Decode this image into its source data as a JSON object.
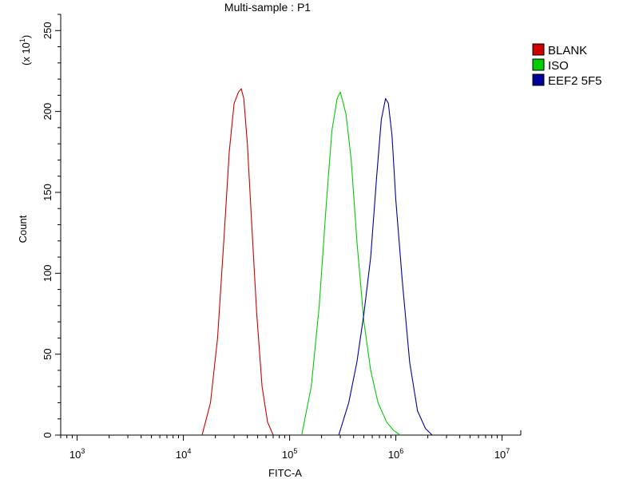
{
  "chart_data": {
    "type": "line",
    "title": "Multi-sample : P1",
    "xlabel": "FITC-A",
    "ylabel": "Count",
    "y_multiplier_label": "(x 10",
    "y_multiplier_exp": "1",
    "y_multiplier_close": ")",
    "xscale": "log",
    "xlim": [
      700,
      15000000
    ],
    "ylim": [
      0,
      260
    ],
    "grid": false,
    "legend_position": "top-right",
    "x_ticks": [
      {
        "base": "10",
        "exp": "3",
        "value": 1000
      },
      {
        "base": "10",
        "exp": "4",
        "value": 10000
      },
      {
        "base": "10",
        "exp": "5",
        "value": 100000
      },
      {
        "base": "10",
        "exp": "6",
        "value": 1000000
      },
      {
        "base": "10",
        "exp": "7",
        "value": 10000000
      }
    ],
    "y_ticks": [
      {
        "label": "0",
        "value": 0
      },
      {
        "label": "50",
        "value": 50
      },
      {
        "label": "100",
        "value": 100
      },
      {
        "label": "150",
        "value": 150
      },
      {
        "label": "200",
        "value": 200
      },
      {
        "label": "250",
        "value": 250
      }
    ],
    "series": [
      {
        "name": "BLANK",
        "color": "#cc0000",
        "x": [
          15000,
          18000,
          21000,
          24000,
          27000,
          30000,
          33000,
          35000,
          37000,
          40000,
          44000,
          49000,
          55000,
          62000,
          70000
        ],
        "y": [
          0,
          20,
          60,
          120,
          175,
          205,
          212,
          214,
          208,
          180,
          130,
          75,
          30,
          8,
          0
        ]
      },
      {
        "name": "ISO",
        "color": "#00cc00",
        "x": [
          130000,
          160000,
          190000,
          220000,
          250000,
          280000,
          300000,
          320000,
          340000,
          380000,
          430000,
          500000,
          580000,
          680000,
          820000,
          950000,
          1100000
        ],
        "y": [
          0,
          30,
          80,
          140,
          188,
          208,
          212,
          205,
          198,
          170,
          120,
          70,
          40,
          20,
          8,
          3,
          0
        ]
      },
      {
        "name": "EEF2 5F5",
        "color": "#000099",
        "x": [
          290000,
          360000,
          430000,
          500000,
          580000,
          660000,
          730000,
          800000,
          850000,
          920000,
          1000000,
          1150000,
          1350000,
          1600000,
          1900000,
          2200000
        ],
        "y": [
          0,
          20,
          45,
          75,
          110,
          160,
          195,
          208,
          205,
          185,
          145,
          95,
          45,
          15,
          4,
          0
        ]
      }
    ]
  }
}
